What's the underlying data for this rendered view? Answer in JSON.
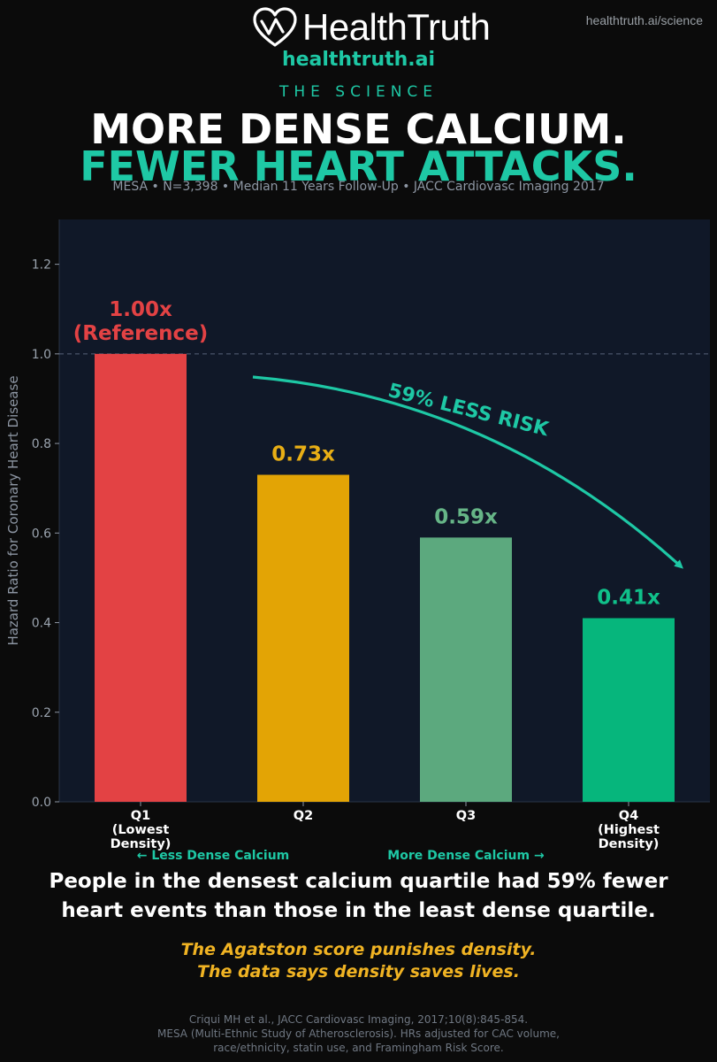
{
  "brand": {
    "name": "HealthTruth",
    "url": "healthtruth.ai",
    "top_url": "healthtruth.ai/science",
    "section_label": "THE SCIENCE"
  },
  "headline": {
    "line1": "MORE DENSE CALCIUM.",
    "line2": "FEWER HEART ATTACKS.",
    "meta": "MESA • N=3,398 • Median 11 Years Follow-Up • JACC Cardiovasc Imaging 2017"
  },
  "chart_data": {
    "type": "bar",
    "categories": [
      "Q1\n(Lowest\nDensity)",
      "Q2",
      "Q3",
      "Q4\n(Highest\nDensity)"
    ],
    "values": [
      1.0,
      0.73,
      0.59,
      0.41
    ],
    "data_labels": [
      "1.00x\n(Reference)",
      "0.73x",
      "0.59x",
      "0.41x"
    ],
    "bar_colors": [
      "#e34244",
      "#e3a405",
      "#5ca97e",
      "#06b67c"
    ],
    "label_colors": [
      "#e34244",
      "#e8ae15",
      "#66b587",
      "#10c08a"
    ],
    "ylabel": "Hazard Ratio for Coronary Heart Disease",
    "xlabel": "",
    "ylim": [
      0,
      1.3
    ],
    "yticks": [
      "0.0",
      "0.2",
      "0.4",
      "0.6",
      "0.8",
      "1.0",
      "1.2"
    ],
    "reference_line": 1.0,
    "annotation": "59% LESS RISK",
    "axis_notes": {
      "left": "← Less Dense Calcium",
      "right": "More Dense Calcium →"
    },
    "grid": false,
    "background": "#101828",
    "accent": "#1ec8a5"
  },
  "tagline": {
    "line1": "People in the densest calcium quartile had 59% fewer",
    "line2": "heart events than those in the least dense quartile."
  },
  "gold": {
    "line1": "The Agatston score punishes density.",
    "line2": "The data says density saves lives."
  },
  "footnote": {
    "line1": "Criqui MH et al., JACC Cardiovasc Imaging, 2017;10(8):845-854.",
    "line2": "MESA (Multi-Ethnic Study of Atherosclerosis). HRs adjusted for CAC volume,",
    "line3": "race/ethnicity, statin use, and Framingham Risk Score."
  }
}
